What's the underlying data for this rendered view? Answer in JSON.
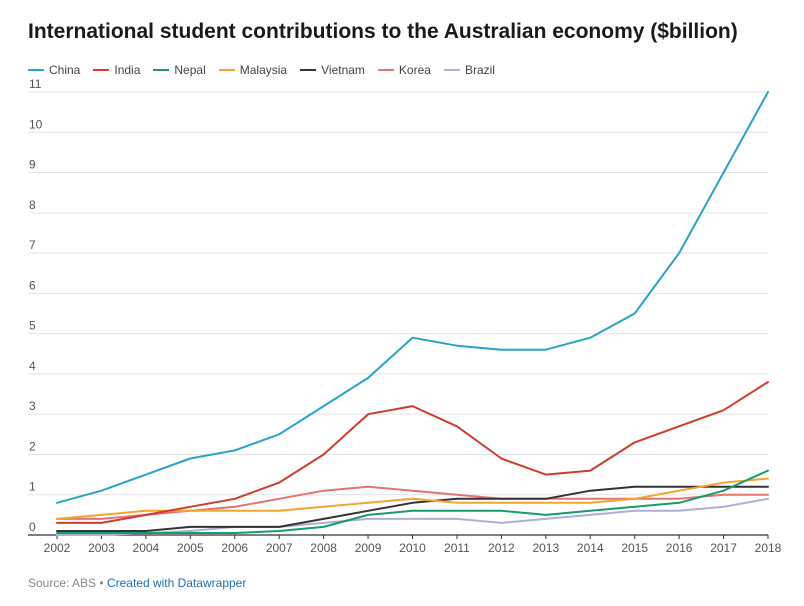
{
  "chart_data": {
    "type": "line",
    "title": "International student contributions to the Australian economy ($billion)",
    "source": "Source: ABS",
    "credit": "Created with Datawrapper",
    "x": [
      "2002",
      "2003",
      "2004",
      "2005",
      "2006",
      "2007",
      "2008",
      "2009",
      "2010",
      "2011",
      "2012",
      "2013",
      "2014",
      "2015",
      "2016",
      "2017",
      "2018"
    ],
    "ylim": [
      0,
      11
    ],
    "yticks": [
      0,
      1,
      2,
      3,
      4,
      5,
      6,
      7,
      8,
      9,
      10,
      11
    ],
    "grid": true,
    "legend": "top-left",
    "series": [
      {
        "name": "China",
        "color": "#29a3c9",
        "values": [
          0.8,
          1.1,
          1.5,
          1.9,
          2.1,
          2.5,
          3.2,
          3.9,
          4.9,
          4.7,
          4.6,
          4.6,
          4.9,
          5.5,
          7.0,
          9.0,
          11.0
        ]
      },
      {
        "name": "India",
        "color": "#d13c2e",
        "values": [
          0.3,
          0.3,
          0.5,
          0.7,
          0.9,
          1.3,
          2.0,
          3.0,
          3.2,
          2.7,
          1.9,
          1.5,
          1.6,
          2.3,
          2.7,
          3.1,
          3.8
        ]
      },
      {
        "name": "Nepal",
        "color": "#169c6e",
        "values": [
          0.05,
          0.05,
          0.05,
          0.05,
          0.05,
          0.1,
          0.2,
          0.5,
          0.6,
          0.6,
          0.6,
          0.5,
          0.6,
          0.7,
          0.8,
          1.1,
          1.6
        ]
      },
      {
        "name": "Malaysia",
        "color": "#f2a62c",
        "values": [
          0.4,
          0.5,
          0.6,
          0.6,
          0.6,
          0.6,
          0.7,
          0.8,
          0.9,
          0.8,
          0.8,
          0.8,
          0.8,
          0.9,
          1.1,
          1.3,
          1.4
        ]
      },
      {
        "name": "Vietnam",
        "color": "#333333",
        "values": [
          0.1,
          0.1,
          0.1,
          0.2,
          0.2,
          0.2,
          0.4,
          0.6,
          0.8,
          0.9,
          0.9,
          0.9,
          1.1,
          1.2,
          1.2,
          1.2,
          1.2
        ]
      },
      {
        "name": "Korea",
        "color": "#e57373",
        "values": [
          0.4,
          0.4,
          0.5,
          0.6,
          0.7,
          0.9,
          1.1,
          1.2,
          1.1,
          1.0,
          0.9,
          0.9,
          0.9,
          0.9,
          0.9,
          1.0,
          1.0
        ]
      },
      {
        "name": "Brazil",
        "color": "#b0aed6",
        "values": [
          0.0,
          0.0,
          0.05,
          0.1,
          0.2,
          0.2,
          0.3,
          0.4,
          0.4,
          0.4,
          0.3,
          0.4,
          0.5,
          0.6,
          0.6,
          0.7,
          0.9
        ]
      }
    ]
  }
}
